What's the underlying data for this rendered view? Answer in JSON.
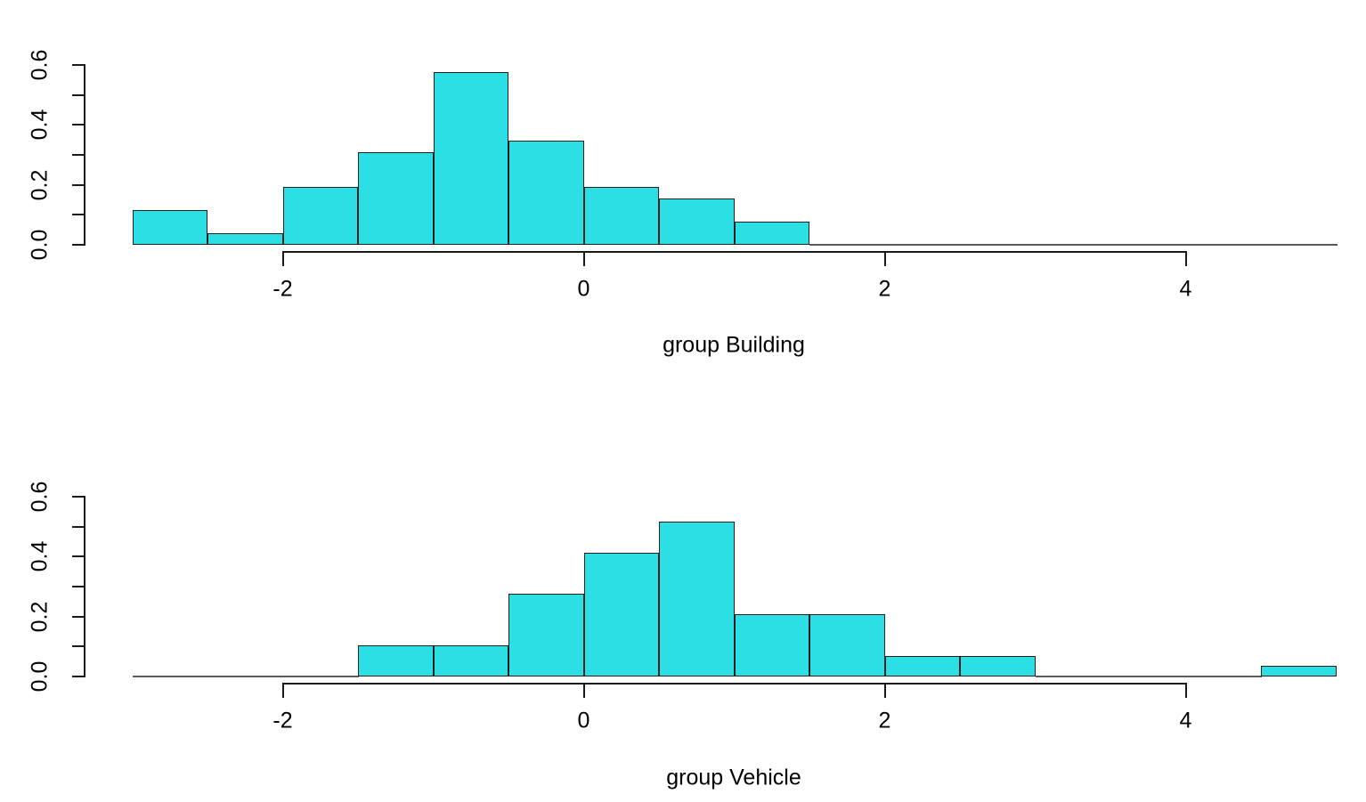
{
  "figure": {
    "background": "#ffffff",
    "colors": {
      "bar_fill": "#2BDFE5",
      "bar_border": "#1f1f1f",
      "axis": "#1a1a1a",
      "baseline": "#5a5a5a",
      "text": "#000000"
    }
  },
  "chart_data": [
    {
      "type": "histogram",
      "xlabel": "group Building",
      "xlim": [
        -3,
        5
      ],
      "ylim": [
        0,
        0.6
      ],
      "bin_start": -3,
      "bin_width": 0.5,
      "bin_edges": [
        -3,
        -2.5,
        -2,
        -1.5,
        -1,
        -0.5,
        0,
        0.5,
        1,
        1.5,
        2,
        2.5,
        3,
        3.5,
        4,
        4.5,
        5
      ],
      "densities": [
        0.1154,
        0.0385,
        0.1923,
        0.3077,
        0.5769,
        0.3462,
        0.1923,
        0.1538,
        0.0769,
        0,
        0,
        0,
        0,
        0,
        0,
        0
      ],
      "x_tick_values": [
        -2,
        0,
        2,
        4
      ],
      "x_tick_labels": [
        "-2",
        "0",
        "2",
        "4"
      ],
      "y_tick_values": [
        0,
        0.2,
        0.4,
        0.6
      ],
      "y_tick_labels": [
        "0.0",
        "0.2",
        "0.4",
        "0.6"
      ],
      "y_minor_tick_step": 0.1,
      "grid": false,
      "legend": false
    },
    {
      "type": "histogram",
      "xlabel": "group Vehicle",
      "xlim": [
        -3,
        5
      ],
      "ylim": [
        0,
        0.6
      ],
      "bin_start": -3,
      "bin_width": 0.5,
      "bin_edges": [
        -3,
        -2.5,
        -2,
        -1.5,
        -1,
        -0.5,
        0,
        0.5,
        1,
        1.5,
        2,
        2.5,
        3,
        3.5,
        4,
        4.5,
        5
      ],
      "densities": [
        0,
        0,
        0,
        0.1034,
        0.1034,
        0.2759,
        0.4138,
        0.5172,
        0.2069,
        0.2069,
        0.069,
        0.069,
        0,
        0,
        0,
        0.0345
      ],
      "x_tick_values": [
        -2,
        0,
        2,
        4
      ],
      "x_tick_labels": [
        "-2",
        "0",
        "2",
        "4"
      ],
      "y_tick_values": [
        0,
        0.2,
        0.4,
        0.6
      ],
      "y_tick_labels": [
        "0.0",
        "0.2",
        "0.4",
        "0.6"
      ],
      "y_minor_tick_step": 0.1,
      "grid": false,
      "legend": false
    }
  ]
}
